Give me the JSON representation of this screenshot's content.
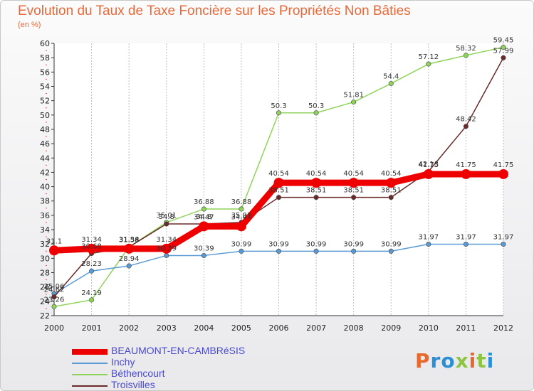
{
  "title": "Evolution du Taux de Taxe Foncière sur les Propriétés Non Bâties",
  "unit_label": "(en %)",
  "logo": {
    "text": "Proxiti",
    "colors": [
      "#e8692a",
      "#2a8fd4",
      "#8cc63f"
    ]
  },
  "chart_data": {
    "type": "line",
    "x": [
      2000,
      2001,
      2002,
      2003,
      2004,
      2005,
      2006,
      2007,
      2008,
      2009,
      2010,
      2011,
      2012
    ],
    "x_tick_labels": [
      "2000",
      "2001",
      "2002",
      "2003",
      "2004",
      "2005",
      "2006",
      "2007",
      "2008",
      "2009",
      "2010",
      "2011",
      "2012"
    ],
    "ylim": [
      22,
      60
    ],
    "y_ticks": [
      22,
      24,
      26,
      28,
      30,
      32,
      34,
      36,
      38,
      40,
      42,
      44,
      46,
      48,
      50,
      52,
      54,
      56,
      58,
      60
    ],
    "grid": "vertical",
    "legend_position": "bottom-left",
    "series": [
      {
        "name": "BEAUMONT-EN-CAMBRéSIS",
        "color": "#ee0000",
        "values": [
          31.1,
          31.34,
          31.34,
          31.34,
          34.47,
          34.47,
          40.54,
          40.54,
          40.54,
          40.54,
          41.75,
          41.75,
          41.75
        ],
        "labels": [
          "31.1",
          "31.34",
          "31.34",
          "31.34",
          "34.47",
          "34.47",
          "40.54",
          "40.54",
          "40.54",
          "40.54",
          "41.75",
          "41.75",
          "41.75"
        ]
      },
      {
        "name": "Inchy",
        "color": "#5b9bd5",
        "values": [
          25.06,
          28.23,
          28.94,
          30.39,
          30.39,
          30.99,
          30.99,
          30.99,
          30.99,
          30.99,
          31.97,
          31.97,
          31.97
        ],
        "labels": [
          "25.06",
          "28.23",
          "28.94",
          "30.39",
          "30.39",
          "30.99",
          "30.99",
          "30.99",
          "30.99",
          "30.99",
          "31.97",
          "31.97",
          "31.97"
        ]
      },
      {
        "name": "Béthencourt",
        "color": "#8fd45a",
        "values": [
          23.26,
          24.19,
          31.58,
          35.01,
          36.88,
          36.88,
          50.3,
          50.3,
          51.81,
          54.4,
          57.12,
          58.32,
          59.45
        ],
        "labels": [
          "23.26",
          "24.19",
          "31.58",
          "35.01",
          "36.88",
          "36.88",
          "50.3",
          "50.3",
          "51.81",
          "54.4",
          "57.12",
          "58.32",
          "59.45"
        ]
      },
      {
        "name": "Troisvilles",
        "color": "#6b2a2a",
        "values": [
          24.62,
          30.68,
          31.58,
          34.8,
          34.8,
          35.01,
          38.51,
          38.51,
          38.51,
          38.51,
          42.13,
          48.42,
          57.99
        ],
        "labels": [
          "24.62",
          "30.68",
          "31.58",
          "34.8",
          "34.8",
          "35.01",
          "38.51",
          "38.51",
          "38.51",
          "38.51",
          "42.13",
          "48.42",
          "57.99"
        ]
      }
    ]
  }
}
